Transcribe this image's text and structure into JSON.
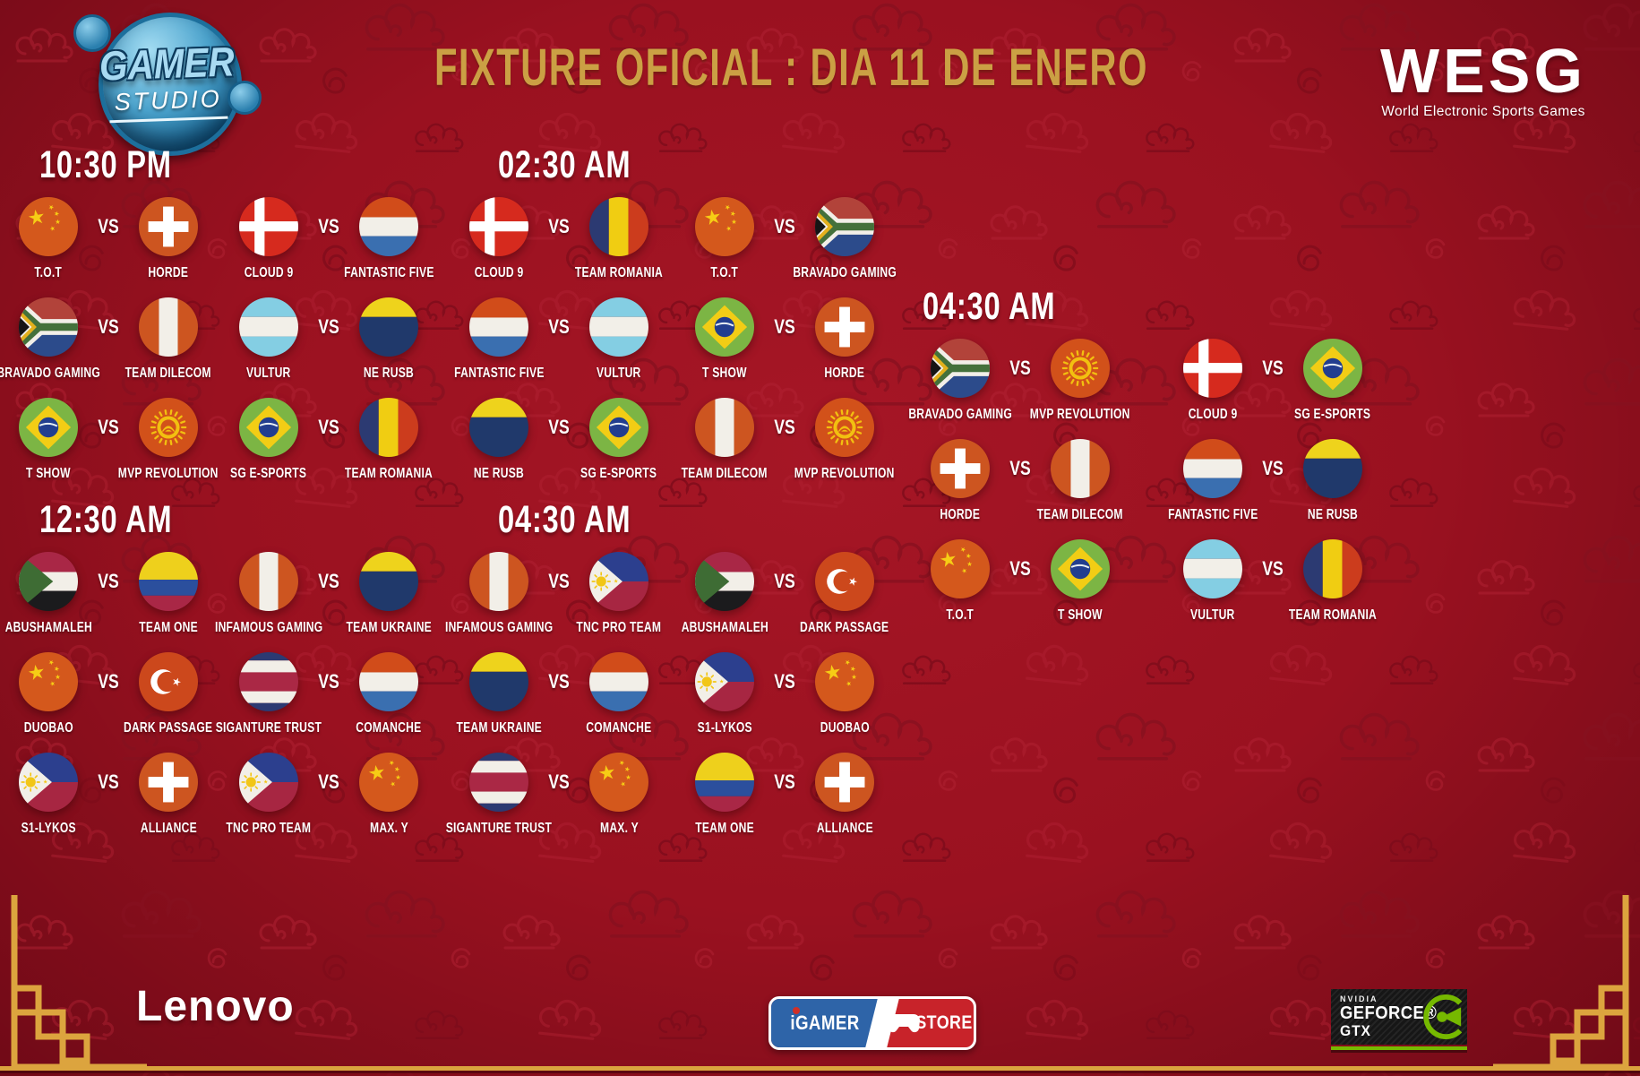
{
  "labels": {
    "vs": "VS"
  },
  "header": {
    "title": "FIXTURE OFICIAL : DIA 11 DE ENERO",
    "gamer_studio": {
      "line1": "GAMER",
      "line2": "STUDIO"
    },
    "wesg": {
      "acronym": "WESG",
      "subtitle": "World Electronic Sports Games"
    }
  },
  "colors": {
    "background_red": "#9a1120",
    "accent_gold": "#cba044",
    "text_white": "#ffffff",
    "nvidia_green": "#76b900",
    "igamer_blue": "#2e64a8",
    "igamer_red": "#c8232a"
  },
  "sections": [
    {
      "time": "10:30 PM",
      "matches": [
        {
          "home": {
            "name": "T.O.T",
            "flag": "china"
          },
          "away": {
            "name": "HORDE",
            "flag": "switzerland"
          }
        },
        {
          "home": {
            "name": "CLOUD 9",
            "flag": "denmark"
          },
          "away": {
            "name": "FANTASTIC FIVE",
            "flag": "netherlands"
          }
        },
        {
          "home": {
            "name": "BRAVADO GAMING",
            "flag": "south-africa"
          },
          "away": {
            "name": "TEAM DILECOM",
            "flag": "peru"
          }
        },
        {
          "home": {
            "name": "VULTUR",
            "flag": "argentina"
          },
          "away": {
            "name": "NE RUSB",
            "flag": "yellow-navy"
          }
        },
        {
          "home": {
            "name": "T SHOW",
            "flag": "brazil"
          },
          "away": {
            "name": "MVP REVOLUTION",
            "flag": "kyrgyzstan"
          }
        },
        {
          "home": {
            "name": "SG E-SPORTS",
            "flag": "brazil"
          },
          "away": {
            "name": "TEAM ROMANIA",
            "flag": "romania"
          }
        }
      ]
    },
    {
      "time": "02:30 AM",
      "matches": [
        {
          "home": {
            "name": "CLOUD 9",
            "flag": "denmark"
          },
          "away": {
            "name": "TEAM ROMANIA",
            "flag": "romania"
          }
        },
        {
          "home": {
            "name": "T.O.T",
            "flag": "china"
          },
          "away": {
            "name": "BRAVADO GAMING",
            "flag": "south-africa"
          }
        },
        {
          "home": {
            "name": "FANTASTIC FIVE",
            "flag": "netherlands"
          },
          "away": {
            "name": "VULTUR",
            "flag": "argentina"
          }
        },
        {
          "home": {
            "name": "T SHOW",
            "flag": "brazil"
          },
          "away": {
            "name": "HORDE",
            "flag": "switzerland"
          }
        },
        {
          "home": {
            "name": "NE RUSB",
            "flag": "yellow-navy"
          },
          "away": {
            "name": "SG E-SPORTS",
            "flag": "brazil"
          }
        },
        {
          "home": {
            "name": "TEAM DILECOM",
            "flag": "peru"
          },
          "away": {
            "name": "MVP REVOLUTION",
            "flag": "kyrgyzstan"
          }
        }
      ]
    },
    {
      "time": "04:30 AM",
      "matches": [
        {
          "home": {
            "name": "BRAVADO GAMING",
            "flag": "south-africa"
          },
          "away": {
            "name": "MVP REVOLUTION",
            "flag": "kyrgyzstan"
          }
        },
        {
          "home": {
            "name": "CLOUD 9",
            "flag": "denmark"
          },
          "away": {
            "name": "SG E-SPORTS",
            "flag": "brazil"
          }
        },
        {
          "home": {
            "name": "HORDE",
            "flag": "switzerland"
          },
          "away": {
            "name": "TEAM DILECOM",
            "flag": "peru"
          }
        },
        {
          "home": {
            "name": "FANTASTIC FIVE",
            "flag": "netherlands"
          },
          "away": {
            "name": "NE RUSB",
            "flag": "yellow-navy"
          }
        },
        {
          "home": {
            "name": "T.O.T",
            "flag": "china"
          },
          "away": {
            "name": "T SHOW",
            "flag": "brazil"
          }
        },
        {
          "home": {
            "name": "VULTUR",
            "flag": "argentina"
          },
          "away": {
            "name": "TEAM ROMANIA",
            "flag": "romania"
          }
        }
      ]
    },
    {
      "time": "12:30 AM",
      "matches": [
        {
          "home": {
            "name": "ABUSHAMALEH",
            "flag": "sudan"
          },
          "away": {
            "name": "TEAM ONE",
            "flag": "colombia"
          }
        },
        {
          "home": {
            "name": "INFAMOUS GAMING",
            "flag": "peru"
          },
          "away": {
            "name": "TEAM UKRAINE",
            "flag": "yellow-navy"
          }
        },
        {
          "home": {
            "name": "DUOBAO",
            "flag": "china"
          },
          "away": {
            "name": "DARK PASSAGE",
            "flag": "turkey"
          }
        },
        {
          "home": {
            "name": "SIGANTURE TRUST",
            "flag": "costa-rica"
          },
          "away": {
            "name": "COMANCHE",
            "flag": "netherlands"
          }
        },
        {
          "home": {
            "name": "S1-LYKOS",
            "flag": "philippines"
          },
          "away": {
            "name": "ALLIANCE",
            "flag": "switzerland"
          }
        },
        {
          "home": {
            "name": "TNC PRO TEAM",
            "flag": "philippines"
          },
          "away": {
            "name": "MAX. Y",
            "flag": "china"
          }
        }
      ]
    },
    {
      "time": "04:30 AM",
      "matches": [
        {
          "home": {
            "name": "INFAMOUS GAMING",
            "flag": "peru"
          },
          "away": {
            "name": "TNC PRO TEAM",
            "flag": "philippines"
          }
        },
        {
          "home": {
            "name": "ABUSHAMALEH",
            "flag": "sudan"
          },
          "away": {
            "name": "DARK PASSAGE",
            "flag": "turkey"
          }
        },
        {
          "home": {
            "name": "TEAM UKRAINE",
            "flag": "yellow-navy"
          },
          "away": {
            "name": "COMANCHE",
            "flag": "netherlands"
          }
        },
        {
          "home": {
            "name": "S1-LYKOS",
            "flag": "philippines"
          },
          "away": {
            "name": "DUOBAO",
            "flag": "china"
          }
        },
        {
          "home": {
            "name": "SIGANTURE TRUST",
            "flag": "costa-rica"
          },
          "away": {
            "name": "MAX. Y",
            "flag": "china"
          }
        },
        {
          "home": {
            "name": "TEAM ONE",
            "flag": "colombia"
          },
          "away": {
            "name": "ALLIANCE",
            "flag": "switzerland"
          }
        }
      ]
    }
  ],
  "sponsors": {
    "lenovo": "Lenovo",
    "igamer_store": {
      "left_text": "iGAMER",
      "right_text": "STORE"
    },
    "nvidia": {
      "brand": "NVIDIA",
      "product": "GEFORCE®",
      "series": "GTX"
    }
  }
}
